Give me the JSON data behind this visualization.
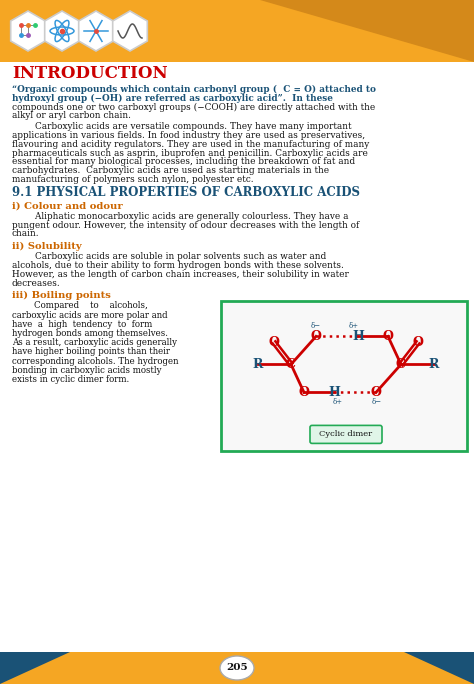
{
  "title": "INTRODUCTION",
  "section_title": "9.1 PHYSICAL PROPERTIES OF CARBOXYLIC ACIDS",
  "page_num": "205",
  "header_bg": "#F5A623",
  "header_dark": "#D4891A",
  "title_color": "#CC0000",
  "section_color": "#1A5276",
  "subsection_color": "#CC6600",
  "bold_blue_color": "#1A5276",
  "body_color": "#111111",
  "bg_color": "#FFFFFF",
  "diagram_border": "#22AA55",
  "footer_bg": "#F5A623",
  "footer_tri_color": "#1A5276",
  "red": "#CC0000",
  "blue": "#1A5276",
  "intro_line1": "“Organic compounds which contain carbonyl group (  C = O) attached to",
  "intro_line2": "hydroxyl group (−OH) are referred as carboxylic acid”.  In these",
  "intro_line3": "compounds one or two carboxyl groups (−COOH) are directly attached with the",
  "intro_line4": "alkyl or aryl carbon chain.",
  "p1_lines": [
    "        Carboxylic acids are versatile compounds. They have many important",
    "applications in various fields. In food industry they are used as preservatives,",
    "flavouring and acidity regulators. They are used in the manufacturing of many",
    "pharmaceuticals such as asprin, ibuprofen and penicillin. Carboxylic acids are",
    "essential for many biological processes, including the breakdown of fat and",
    "carbohydrates.  Carboxylic acids are used as starting materials in the",
    "manufacturing of polymers such nylon, polyester etc."
  ],
  "sub1_title": "i) Colour and odour",
  "sub1_lines": [
    "        Aliphatic monocarboxylic acids are generally colourless. They have a",
    "pungent odour. However, the intensity of odour decreases with the length of",
    "chain."
  ],
  "sub2_title": "ii) Solubility",
  "sub2_lines": [
    "        Carboxylic acids are soluble in polar solvents such as water and",
    "alcohols, due to their ability to form hydrogen bonds with these solvents.",
    "However, as the length of carbon chain increases, their solubility in water",
    "decreases."
  ],
  "sub3_title": "iii) Boiling points",
  "sub3_left": [
    "        Compared    to    alcohols,",
    "carboxylic acids are more polar and",
    "have  a  high  tendency  to  form",
    "hydrogen bonds among themselves.",
    "As a result, carboxylic acids generally",
    "have higher boiling points than their",
    "corresponding alcohols. The hydrogen",
    "bonding in carboxylic acids mostly",
    "exists in cyclic dimer form."
  ]
}
